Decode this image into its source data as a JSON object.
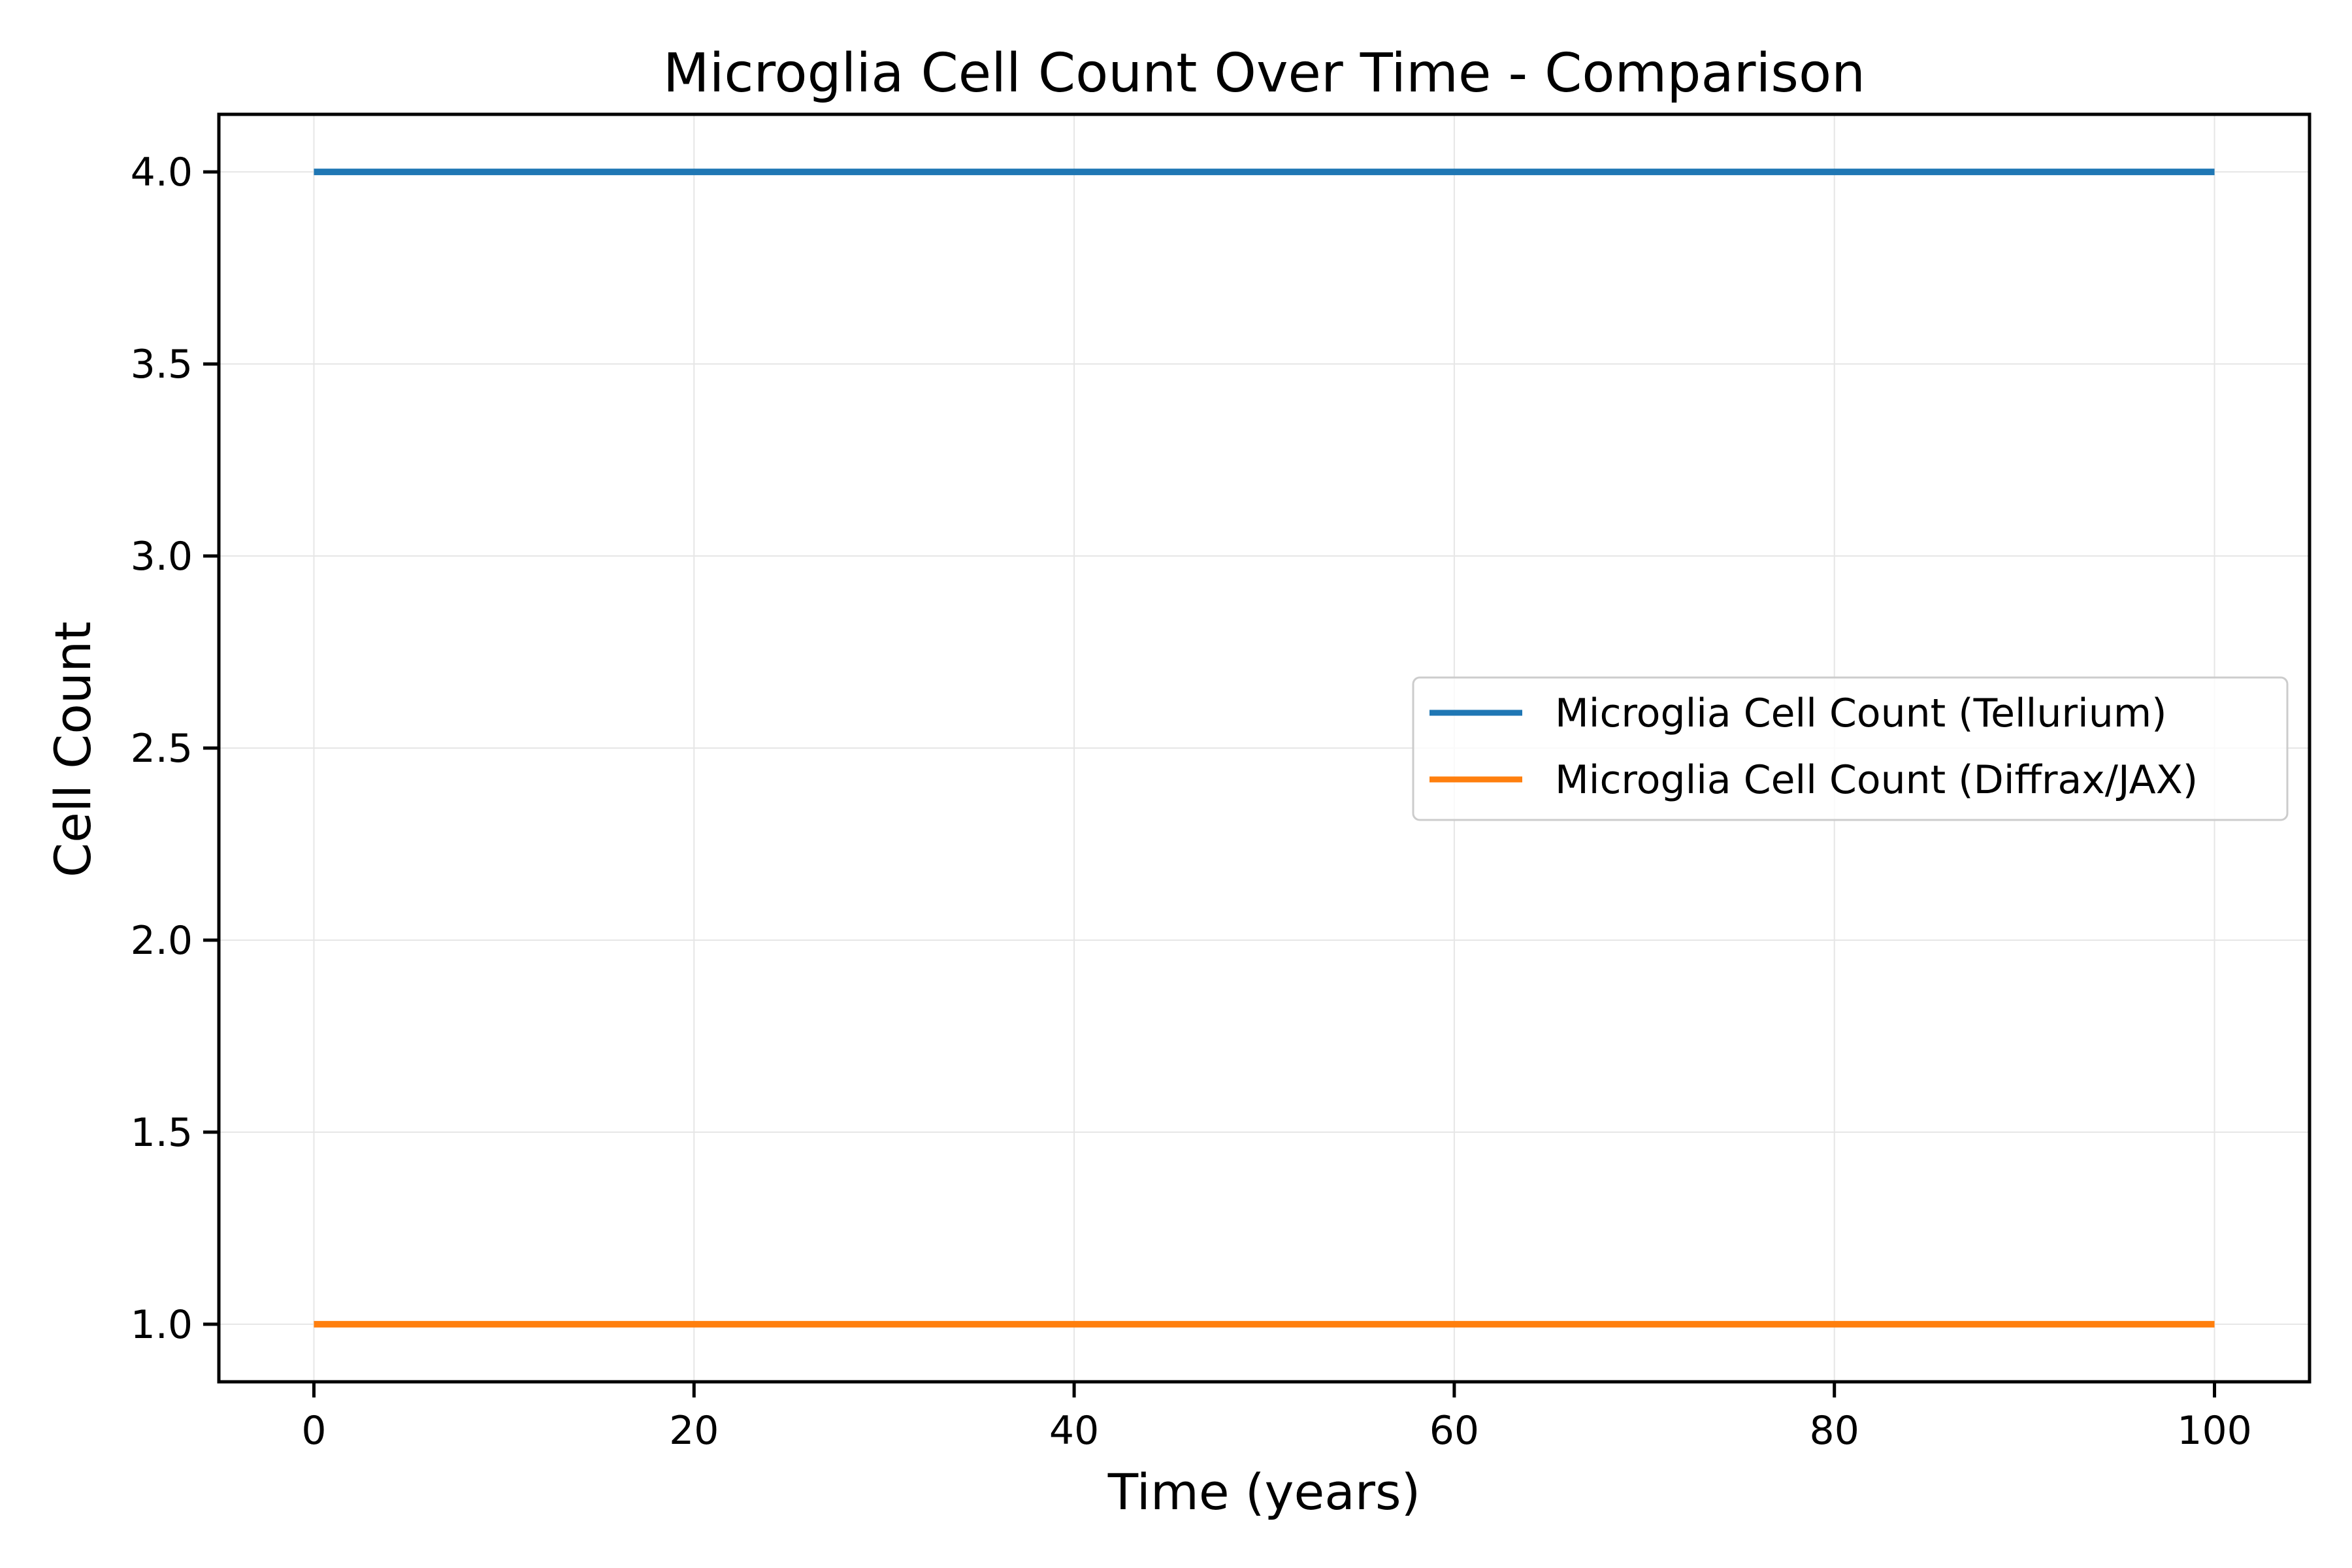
{
  "chart_data": {
    "type": "line",
    "title": "Microglia Cell Count Over Time - Comparison",
    "xlabel": "Time (years)",
    "ylabel": "Cell Count",
    "xlim": [
      -5,
      105
    ],
    "ylim": [
      0.85,
      4.15
    ],
    "x_ticks": [
      0,
      20,
      40,
      60,
      80,
      100
    ],
    "x_tick_labels": [
      "0",
      "20",
      "40",
      "60",
      "80",
      "100"
    ],
    "y_ticks": [
      1.0,
      1.5,
      2.0,
      2.5,
      3.0,
      3.5,
      4.0
    ],
    "y_tick_labels": [
      "1.0",
      "1.5",
      "2.0",
      "2.5",
      "3.0",
      "3.5",
      "4.0"
    ],
    "grid": true,
    "legend_position": "center-right",
    "series": [
      {
        "name": "Microglia Cell Count (Tellurium)",
        "color": "#1f77b4",
        "x": [
          0,
          100
        ],
        "y": [
          4.0,
          4.0
        ]
      },
      {
        "name": "Microglia Cell Count (Diffrax/JAX)",
        "color": "#ff7f0e",
        "x": [
          0,
          100
        ],
        "y": [
          1.0,
          1.0
        ]
      }
    ]
  }
}
